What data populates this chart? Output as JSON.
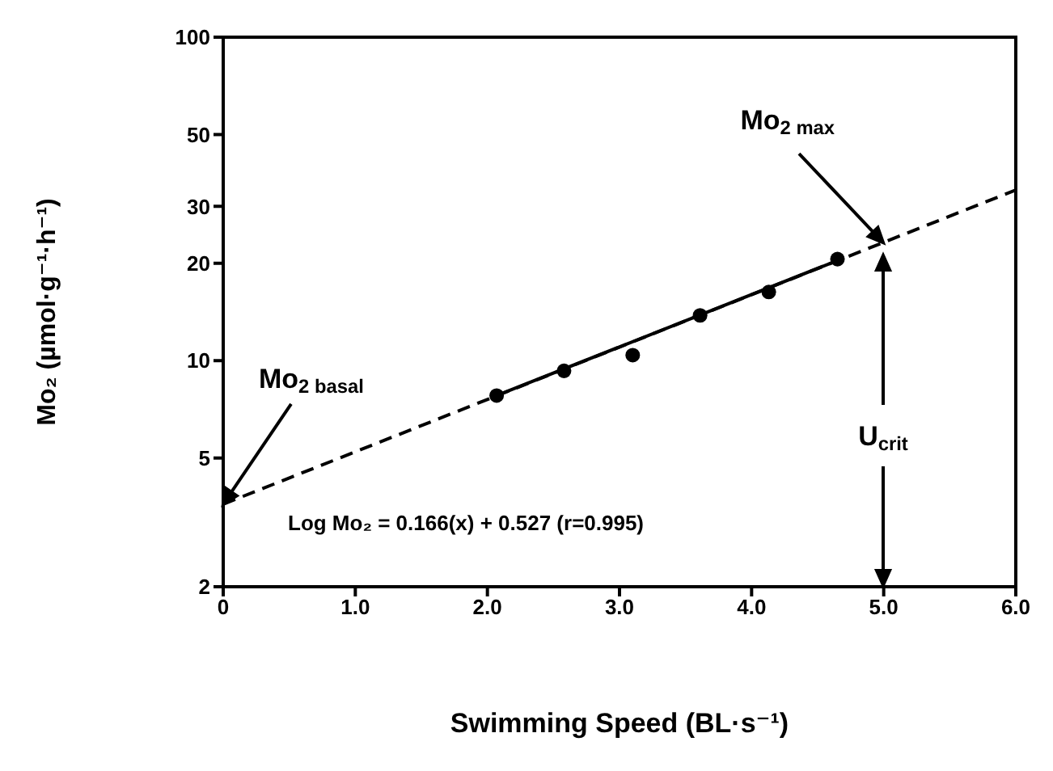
{
  "chart_data": {
    "type": "scatter",
    "xlabel": "Swimming Speed (BL·s⁻¹)",
    "ylabel": "Mo₂ (µmol·g⁻¹·h⁻¹)",
    "xlim": [
      0,
      6
    ],
    "xticks": [
      {
        "value": 0,
        "label": "0"
      },
      {
        "value": 1,
        "label": "1.0"
      },
      {
        "value": 2,
        "label": "2.0"
      },
      {
        "value": 3,
        "label": "3.0"
      },
      {
        "value": 4,
        "label": "4.0"
      },
      {
        "value": 5,
        "label": "5.0"
      },
      {
        "value": 6,
        "label": "6.0"
      }
    ],
    "ylim": [
      2,
      100
    ],
    "yticks": [
      2,
      5,
      10,
      20,
      30,
      50,
      100
    ],
    "log": "y",
    "grid": false,
    "series": [
      {
        "color": "#000000",
        "marker": "circle",
        "x": [
          2.07,
          2.58,
          3.1,
          3.61,
          4.13,
          4.65
        ],
        "values": [
          7.8,
          9.3,
          10.4,
          13.8,
          16.3,
          20.6
        ]
      },
      {
        "type": "line",
        "color": "#000000",
        "marker": "none",
        "line_style": "solid",
        "x": [
          2.07,
          4.65
        ],
        "values": [
          7.8,
          20.4
        ]
      },
      {
        "type": "line",
        "color": "#000000",
        "marker": "none",
        "line_style": "dashed",
        "x": [
          0,
          6
        ],
        "values": [
          3.6,
          33.7
        ]
      }
    ],
    "annotations": [
      "Mo$_{2 basal}$",
      "Mo$_{2 max}$",
      "U$_{crit}$",
      "Log Mo₂ = 0.166(x) + 0.527 (r=0.995)"
    ]
  }
}
